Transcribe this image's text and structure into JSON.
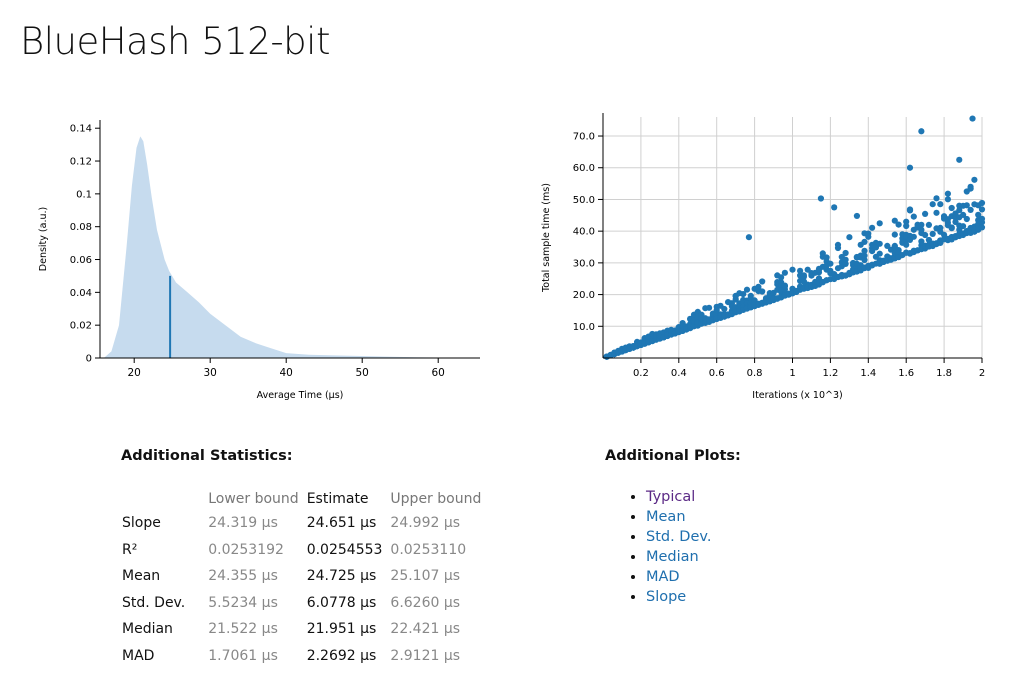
{
  "title": "BlueHash 512-bit",
  "chart_data": [
    {
      "type": "area",
      "xlabel": "Average Time (µs)",
      "ylabel": "Density (a.u.)",
      "xlim": [
        15.5,
        65.5
      ],
      "ylim": [
        0,
        0.145
      ],
      "x_ticks": [
        "20",
        "30",
        "40",
        "50",
        "60"
      ],
      "y_ticks": [
        "0",
        "0.02",
        "0.04",
        "0.06",
        "0.08",
        "0.1",
        "0.12",
        "0.14"
      ],
      "x_tick_values": [
        20,
        30,
        40,
        50,
        60
      ],
      "y_tick_values": [
        0,
        0.02,
        0.04,
        0.06,
        0.08,
        0.1,
        0.12,
        0.14
      ],
      "density_points": [
        [
          16.0,
          0.0
        ],
        [
          17.0,
          0.004
        ],
        [
          18.0,
          0.02
        ],
        [
          19.0,
          0.068
        ],
        [
          19.7,
          0.105
        ],
        [
          20.3,
          0.128
        ],
        [
          20.8,
          0.135
        ],
        [
          21.2,
          0.132
        ],
        [
          21.7,
          0.118
        ],
        [
          22.3,
          0.098
        ],
        [
          23.0,
          0.078
        ],
        [
          24.0,
          0.06
        ],
        [
          24.6,
          0.053
        ],
        [
          25.5,
          0.046
        ],
        [
          27.0,
          0.04
        ],
        [
          28.5,
          0.034
        ],
        [
          30.0,
          0.027
        ],
        [
          32.0,
          0.02
        ],
        [
          34.0,
          0.013
        ],
        [
          36.0,
          0.009
        ],
        [
          38.0,
          0.006
        ],
        [
          40.0,
          0.003
        ],
        [
          43.0,
          0.002
        ],
        [
          47.0,
          0.0015
        ],
        [
          52.0,
          0.001
        ],
        [
          57.0,
          0.0005
        ],
        [
          62.0,
          0.0002
        ],
        [
          65.0,
          0.0
        ]
      ],
      "estimate_line": {
        "x": 24.725,
        "y": 0.05
      },
      "colors": {
        "fill": "#c6dbee",
        "estimate": "#1f77b4",
        "axis": "#000000"
      }
    },
    {
      "type": "scatter",
      "xlabel": "Iterations (x 10^3)",
      "ylabel": "Total sample time (ms)",
      "xlim": [
        0,
        2.0
      ],
      "ylim": [
        0,
        76
      ],
      "x_ticks": [
        "0.2",
        "0.4",
        "0.6",
        "0.8",
        "1",
        "1.2",
        "1.4",
        "1.6",
        "1.8",
        "2"
      ],
      "y_ticks": [
        "10.0",
        "20.0",
        "30.0",
        "40.0",
        "50.0",
        "60.0",
        "70.0"
      ],
      "x_tick_values": [
        0.2,
        0.4,
        0.6,
        0.8,
        1.0,
        1.2,
        1.4,
        1.6,
        1.8,
        2.0
      ],
      "y_tick_values": [
        10,
        20,
        30,
        40,
        50,
        60,
        70
      ],
      "sample_count": 100,
      "base_slope_ms_per_kiter": 20.3,
      "outliers": [
        [
          1.68,
          71.5
        ],
        [
          1.95,
          75.5
        ],
        [
          1.88,
          62.5
        ],
        [
          1.62,
          60.0
        ],
        [
          1.15,
          50.3
        ],
        [
          1.22,
          47.5
        ],
        [
          1.34,
          44.8
        ],
        [
          0.77,
          38.1
        ]
      ],
      "colors": {
        "point": "#1f77b4",
        "grid": "#d0d0d0",
        "axis": "#000000"
      }
    }
  ],
  "stats": {
    "heading": "Additional Statistics:",
    "columns": [
      "",
      "Lower bound",
      "Estimate",
      "Upper bound"
    ],
    "rows": [
      {
        "name": "Slope",
        "lower": "24.319 µs",
        "estimate": "24.651 µs",
        "upper": "24.992 µs"
      },
      {
        "name": "R²",
        "lower": "0.0253192",
        "estimate": "0.0254553",
        "upper": "0.0253110"
      },
      {
        "name": "Mean",
        "lower": "24.355 µs",
        "estimate": "24.725 µs",
        "upper": "25.107 µs"
      },
      {
        "name": "Std. Dev.",
        "lower": "5.5234 µs",
        "estimate": "6.0778 µs",
        "upper": "6.6260 µs"
      },
      {
        "name": "Median",
        "lower": "21.522 µs",
        "estimate": "21.951 µs",
        "upper": "22.421 µs"
      },
      {
        "name": "MAD",
        "lower": "1.7061 µs",
        "estimate": "2.2692 µs",
        "upper": "2.9121 µs"
      }
    ]
  },
  "plots": {
    "heading": "Additional Plots:",
    "links": [
      {
        "label": "Typical",
        "visited": true
      },
      {
        "label": "Mean",
        "visited": false
      },
      {
        "label": "Std. Dev.",
        "visited": false
      },
      {
        "label": "Median",
        "visited": false
      },
      {
        "label": "MAD",
        "visited": false
      },
      {
        "label": "Slope",
        "visited": false
      }
    ]
  }
}
